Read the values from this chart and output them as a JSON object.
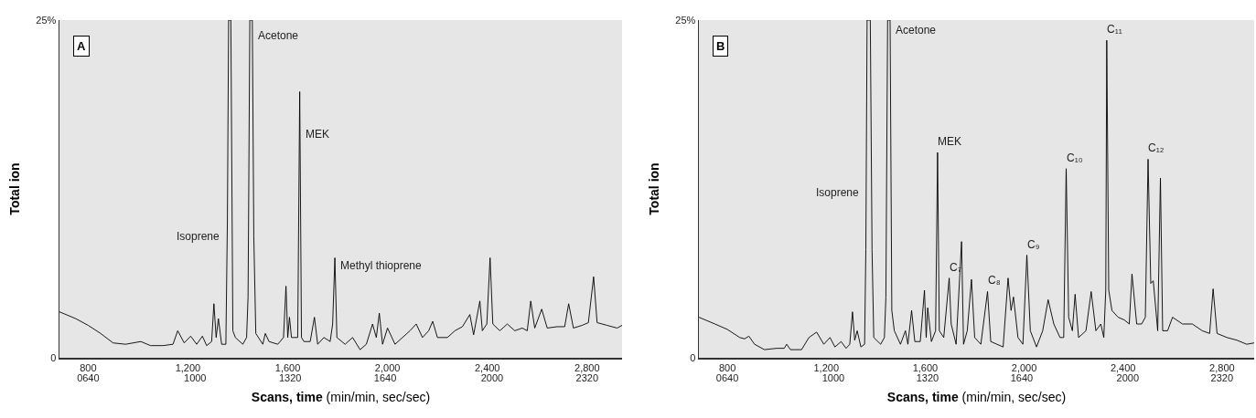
{
  "chart_data": [
    {
      "type": "line",
      "xlabel": "Scans, time (min/min, sec/sec)",
      "ylabel": "Total ion",
      "color": "#000000",
      "xlim": [
        685,
        2940
      ],
      "ylim": [
        0,
        25
      ],
      "xticks": [
        800,
        {
          "value": 1200,
          "label": "1,200"
        },
        {
          "value": 1600,
          "label": "1,600"
        },
        {
          "value": 2000,
          "label": "2,000"
        },
        {
          "value": 2400,
          "label": "2,400"
        },
        {
          "value": 2800,
          "label": "2,800"
        }
      ],
      "x2lim": [
        543.4,
        2437.6
      ],
      "x2ticks": [
        {
          "value": 640,
          "label": "0640"
        },
        1000,
        1320,
        1640,
        2000,
        2320
      ],
      "yticks": [
        0,
        {
          "value": 25,
          "label": "25%"
        }
      ],
      "x": [
        685,
        750,
        800,
        850,
        900,
        950,
        1011,
        1050,
        1100,
        1140,
        1159,
        1185,
        1211,
        1235,
        1258,
        1275,
        1295,
        1304,
        1313,
        1322,
        1335,
        1352,
        1358,
        1363,
        1372,
        1380,
        1390,
        1420,
        1435,
        1441,
        1448,
        1458,
        1464,
        1472,
        1500,
        1510,
        1525,
        1560,
        1583,
        1593,
        1600,
        1607,
        1615,
        1640,
        1648,
        1655,
        1665,
        1690,
        1707,
        1720,
        1745,
        1770,
        1780,
        1789,
        1797,
        1830,
        1860,
        1890,
        1915,
        1940,
        1955,
        1967,
        1980,
        2000,
        2030,
        2060,
        2090,
        2115,
        2140,
        2165,
        2181,
        2200,
        2240,
        2270,
        2300,
        2330,
        2345,
        2370,
        2380,
        2398,
        2411,
        2422,
        2450,
        2480,
        2510,
        2540,
        2560,
        2574,
        2590,
        2618,
        2640,
        2680,
        2710,
        2726,
        2745,
        2780,
        2805,
        2826,
        2840,
        2880,
        2920,
        2940
      ],
      "values": [
        3.4,
        2.9,
        2.4,
        1.8,
        1.1,
        1.0,
        1.2,
        0.9,
        0.9,
        1.0,
        2.0,
        1.1,
        1.6,
        1.0,
        1.6,
        0.9,
        1.2,
        4.0,
        1.5,
        2.9,
        1.0,
        1.0,
        10,
        25,
        25,
        2,
        1.5,
        1.0,
        1.5,
        4.5,
        25,
        25,
        9,
        1.8,
        1.0,
        1.8,
        1.2,
        1.0,
        1.5,
        5.3,
        1.5,
        3.0,
        1.5,
        1.5,
        19.7,
        1.5,
        1.2,
        1.2,
        3.0,
        1.0,
        1.5,
        1.2,
        2.5,
        7.4,
        1.5,
        1.0,
        1.5,
        0.6,
        1.0,
        2.5,
        1.5,
        3.3,
        1.0,
        2.2,
        1.0,
        1.5,
        2.0,
        2.5,
        1.5,
        2.0,
        2.7,
        1.5,
        1.5,
        2.0,
        2.3,
        3.2,
        1.7,
        4.2,
        2.0,
        2.5,
        7.4,
        2.5,
        2.0,
        2.5,
        2.0,
        2.2,
        2.0,
        4.2,
        2.2,
        3.6,
        2.2,
        2.3,
        2.3,
        4.0,
        2.2,
        2.4,
        2.6,
        6.0,
        2.6,
        2.4,
        2.2,
        2.4
      ],
      "annotations": [
        "A",
        {
          "text": "Isoprene",
          "x": 1357,
          "y": 8.5
        },
        {
          "text": "Acetone",
          "x": 1458.6,
          "y": 23.4
        },
        {
          "text": "MEK",
          "x": 1649.4,
          "y": 16.06
        },
        {
          "text": "Methyl thioprene",
          "x": 1790.4,
          "y": 6.37
        }
      ]
    },
    {
      "type": "line",
      "xlabel": "Scans, time (min/min, sec/sec)",
      "ylabel": "Total ion",
      "color": "#000000",
      "xlim": [
        685,
        2930
      ],
      "ylim": [
        0,
        25
      ],
      "xticks": [
        800,
        {
          "value": 1200,
          "label": "1,200"
        },
        {
          "value": 1600,
          "label": "1,600"
        },
        {
          "value": 2000,
          "label": "2,000"
        },
        {
          "value": 2400,
          "label": "2,400"
        },
        {
          "value": 2800,
          "label": "2,800"
        }
      ],
      "x2lim": [
        543.4,
        2429.2
      ],
      "x2ticks": [
        {
          "value": 640,
          "label": "0640"
        },
        1000,
        1320,
        1640,
        2000,
        2320
      ],
      "yticks": [
        0,
        {
          "value": 25,
          "label": "25%"
        }
      ],
      "x": [
        685,
        750,
        800,
        850,
        870,
        887,
        910,
        950,
        1000,
        1030,
        1040,
        1055,
        1100,
        1130,
        1161,
        1190,
        1215,
        1235,
        1260,
        1280,
        1295,
        1306,
        1315,
        1325,
        1340,
        1355,
        1360,
        1365,
        1378,
        1385,
        1392,
        1420,
        1435,
        1441,
        1448,
        1458,
        1465,
        1475,
        1500,
        1520,
        1530,
        1545,
        1558,
        1580,
        1597,
        1604,
        1610,
        1625,
        1642,
        1650,
        1657,
        1675,
        1697,
        1705,
        1725,
        1747,
        1755,
        1770,
        1787,
        1800,
        1825,
        1852,
        1865,
        1890,
        1915,
        1935,
        1947,
        1957,
        1975,
        1995,
        2011,
        2025,
        2050,
        2075,
        2097,
        2120,
        2145,
        2160,
        2170,
        2180,
        2195,
        2206,
        2220,
        2250,
        2271,
        2290,
        2310,
        2322,
        2330,
        2334,
        2342,
        2355,
        2380,
        2405,
        2425,
        2436,
        2455,
        2475,
        2490,
        2501,
        2512,
        2522,
        2540,
        2551,
        2560,
        2580,
        2600,
        2640,
        2680,
        2720,
        2750,
        2764,
        2780,
        2820,
        2860,
        2900,
        2930
      ],
      "values": [
        3.0,
        2.5,
        2.1,
        1.5,
        1.4,
        1.6,
        1.0,
        0.6,
        0.7,
        0.7,
        1.0,
        0.6,
        0.6,
        1.5,
        1.9,
        1.0,
        1.5,
        0.8,
        1.2,
        0.7,
        1.0,
        3.4,
        1.3,
        2.0,
        0.8,
        1.0,
        8,
        25,
        25,
        8,
        1.5,
        1.0,
        1.5,
        4.5,
        25,
        25,
        3.5,
        2.0,
        1.0,
        2.0,
        1.0,
        3.5,
        1.2,
        1.2,
        5.0,
        1.5,
        3.7,
        1.2,
        2.0,
        15.2,
        2.0,
        1.5,
        5.9,
        2.5,
        1.0,
        8.6,
        1.0,
        2.0,
        5.8,
        1.5,
        1.0,
        4.9,
        1.2,
        1.0,
        0.8,
        5.9,
        3.5,
        4.5,
        1.5,
        1.0,
        7.6,
        2.0,
        0.8,
        2.0,
        4.3,
        2.5,
        1.5,
        1.5,
        14.0,
        3.0,
        2.0,
        4.7,
        1.5,
        2.0,
        4.9,
        2.0,
        2.5,
        1.5,
        5.0,
        23.5,
        5.0,
        3.5,
        3.0,
        2.8,
        2.5,
        6.2,
        2.5,
        2.5,
        3.0,
        14.7,
        5.5,
        5.7,
        2.0,
        13.3,
        2.0,
        2.0,
        3.0,
        2.5,
        2.5,
        2.0,
        1.8,
        5.1,
        1.8,
        1.5,
        1.3,
        1.0,
        1.1
      ],
      "annotations": [
        "B",
        {
          "text": "Isoprene",
          "x": 1361.1,
          "y": 11.74
        },
        {
          "text": "Acetone",
          "x": 1458.4,
          "y": 23.77
        },
        {
          "text": "MEK",
          "x": 1650,
          "y": 15.2
        },
        {
          "text": "C₇",
          "x": 1697,
          "y": 5.9
        },
        {
          "text": "C₈",
          "x": 1852,
          "y": 4.9
        },
        {
          "text": "C₉",
          "x": 2011,
          "y": 7.6
        },
        {
          "text": "C₁₀",
          "x": 2170,
          "y": 14.0
        },
        {
          "text": "C₁₁",
          "x": 2334,
          "y": 23.5
        },
        {
          "text": "C₁₂",
          "x": 2501,
          "y": 14.7
        }
      ]
    }
  ]
}
